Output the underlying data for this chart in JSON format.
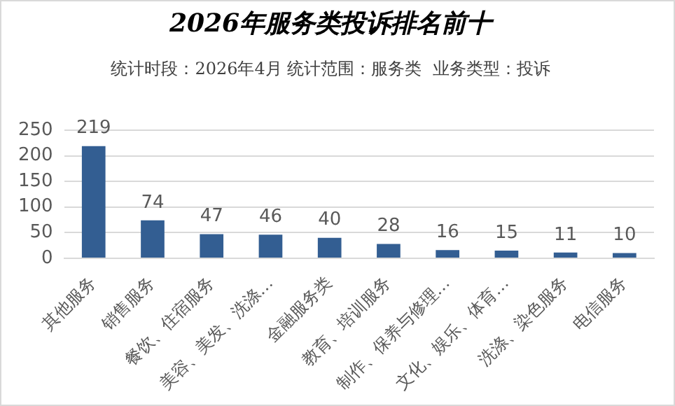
{
  "chart_data": {
    "type": "bar",
    "title": "2026年服务类投诉排名前十",
    "subtitle": "统计时段：2026年4月 统计范围：服务类  业务类型：投诉",
    "categories": [
      "其他服务",
      "销售服务",
      "餐饮、住宿服务",
      "美容、美发、洗涤…",
      "金融服务类",
      "教育、培训服务",
      "制作、保养与修理…",
      "文化、娱乐、体育…",
      "洗涤、染色服务",
      "电信服务"
    ],
    "values": [
      219,
      74,
      47,
      46,
      40,
      28,
      16,
      15,
      11,
      10
    ],
    "color": "#335e92",
    "ylim": [
      0,
      250
    ],
    "yticks": [
      0,
      50,
      100,
      150,
      200,
      250
    ],
    "grid": "y",
    "data_labels": true,
    "legend": false
  }
}
